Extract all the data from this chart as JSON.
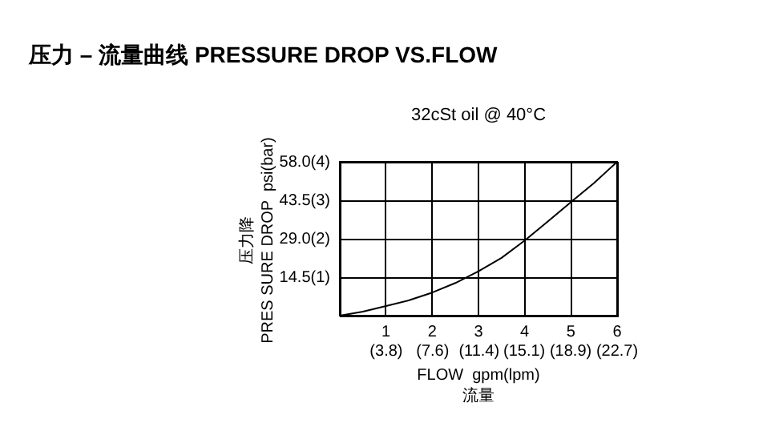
{
  "chart_data": {
    "type": "line",
    "title": "压力 – 流量曲线 PRESSURE DROP VS.FLOW",
    "subtitle": "32cSt oil @ 40°C",
    "xlabel": "FLOW  gpm(lpm)\n流量",
    "ylabel": "压力降\nPRES SURE DROP  psi(bar)",
    "x": [
      0,
      0.5,
      1,
      1.5,
      2,
      2.5,
      3,
      3.5,
      4,
      4.5,
      5,
      5.5,
      6
    ],
    "series": [
      {
        "color": "#000000",
        "values": [
          0,
          1.5,
          3.6,
          5.8,
          8.7,
          12.3,
          16.7,
          21.8,
          28.3,
          35.5,
          42.8,
          50,
          58
        ]
      }
    ],
    "xlim": [
      0,
      6
    ],
    "ylim": [
      0,
      58
    ],
    "xticks": [
      1,
      2,
      3,
      4,
      5,
      6
    ],
    "x2lim": [
      0,
      22.7
    ],
    "x2ticks": [
      {
        "value": 3.8,
        "label": "(3.8)"
      },
      {
        "value": 7.6,
        "label": "(7.6)"
      },
      {
        "value": 11.4,
        "label": "(11.4)"
      },
      {
        "value": 15.1,
        "label": "(15.1)"
      },
      {
        "value": 18.9,
        "label": "(18.9)"
      },
      {
        "value": 22.7,
        "label": "(22.7)"
      }
    ],
    "yticks": [
      14.5,
      {
        "value": 29,
        "label": "29.0"
      },
      43.5,
      {
        "value": 58,
        "label": "58.0"
      }
    ],
    "y2lim": [
      0,
      4
    ],
    "y2ticks": [
      {
        "value": 1,
        "label": "(1)"
      },
      {
        "value": 2,
        "label": "(2)"
      },
      {
        "value": 3,
        "label": "(3)"
      },
      {
        "value": 4,
        "label": "(4)"
      }
    ],
    "grid": true,
    "legend": false,
    "marker": "none",
    "line_style": "solid"
  }
}
